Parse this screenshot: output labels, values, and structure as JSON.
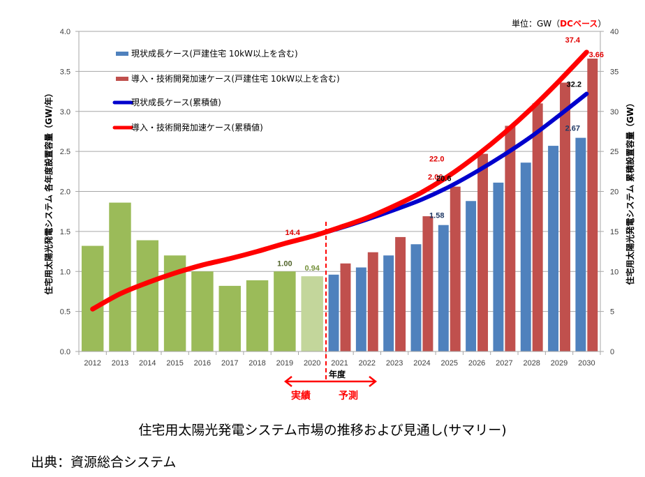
{
  "chart_data": {
    "type": "bar",
    "title": "住宅用太陽光発電システム市場の推移および見通し(サマリー)",
    "unit_note": {
      "prefix": "単位：GW（",
      "highlight": "DCベース",
      "suffix": "）"
    },
    "xlabel": "年度",
    "ylabel_left": "住宅用太陽光発電システム 各年度設置容量（GW/年）",
    "ylabel_right": "住宅用太陽光発電システム 累積設置容量（GW）",
    "ylim_left": [
      0,
      4.0
    ],
    "ylim_right": [
      0,
      40
    ],
    "yticks_left": [
      "0.0",
      "0.5",
      "1.0",
      "1.5",
      "2.0",
      "2.5",
      "3.0",
      "3.5",
      "4.0"
    ],
    "yticks_right": [
      "0",
      "5",
      "10",
      "15",
      "20",
      "25",
      "30",
      "35",
      "40"
    ],
    "grid": true,
    "legend_position": "top-left",
    "categories": [
      "2012",
      "2013",
      "2014",
      "2015",
      "2016",
      "2017",
      "2018",
      "2019",
      "2020",
      "2021",
      "2022",
      "2023",
      "2024",
      "2025",
      "2026",
      "2027",
      "2028",
      "2029",
      "2030"
    ],
    "actual_bars": {
      "name": "実績",
      "values": [
        1.32,
        1.86,
        1.39,
        1.2,
        1.0,
        0.82,
        0.89,
        1.0,
        0.94,
        null,
        null,
        null,
        null,
        null,
        null,
        null,
        null,
        null,
        null
      ],
      "color": "#9bbb59",
      "estimate_color": "#c3d69b"
    },
    "series": [
      {
        "name": "現状成長ケース(戸建住宅 10kW以上を含む)",
        "type": "bar",
        "axis": "left",
        "color": "#4f81bd",
        "values": [
          null,
          null,
          null,
          null,
          null,
          null,
          null,
          null,
          null,
          0.96,
          1.05,
          1.2,
          1.34,
          1.58,
          1.88,
          2.11,
          2.36,
          2.57,
          2.67
        ]
      },
      {
        "name": "導入・技術開発加速ケース(戸建住宅 10kW以上を含む)",
        "type": "bar",
        "axis": "left",
        "color": "#c0504d",
        "values": [
          null,
          null,
          null,
          null,
          null,
          null,
          null,
          null,
          null,
          1.1,
          1.24,
          1.43,
          1.69,
          2.06,
          2.47,
          2.82,
          3.1,
          3.36,
          3.66
        ]
      },
      {
        "name": "現状成長ケース(累積値)",
        "type": "line",
        "axis": "right",
        "color": "#0000cc",
        "values": [
          5.3,
          7.2,
          8.6,
          9.8,
          10.8,
          11.6,
          12.5,
          13.5,
          14.4,
          15.4,
          16.5,
          17.7,
          19.0,
          20.6,
          22.5,
          24.6,
          26.9,
          29.5,
          32.2
        ]
      },
      {
        "name": "導入・技術開発加速ケース(累積値)",
        "type": "line",
        "axis": "right",
        "color": "#ff0000",
        "values": [
          5.3,
          7.2,
          8.6,
          9.8,
          10.8,
          11.6,
          12.5,
          13.5,
          14.4,
          15.5,
          16.7,
          18.2,
          19.9,
          22.0,
          24.5,
          27.3,
          30.4,
          33.8,
          37.4
        ]
      }
    ],
    "data_labels": [
      {
        "text": "1.00",
        "category": "2019",
        "value": 1.0,
        "axis": "left",
        "color": "#4f6228"
      },
      {
        "text": "0.94",
        "category": "2020",
        "value": 0.94,
        "axis": "left",
        "color": "#76923c"
      },
      {
        "text": "14.4",
        "category": "2020",
        "value": 14.4,
        "axis": "right",
        "color": "#e00000"
      },
      {
        "text": "1.58",
        "category": "2025",
        "value": 1.58,
        "axis": "left",
        "color": "#1f3864"
      },
      {
        "text": "2.06",
        "category": "2025",
        "value": 2.06,
        "axis": "left",
        "color": "#e00000"
      },
      {
        "text": "20.6",
        "category": "2025",
        "value": 20.6,
        "axis": "right",
        "color": "#000000"
      },
      {
        "text": "22.0",
        "category": "2025",
        "value": 22.0,
        "axis": "right",
        "color": "#e00000"
      },
      {
        "text": "2.67",
        "category": "2030",
        "value": 2.67,
        "axis": "left",
        "color": "#1f3864"
      },
      {
        "text": "3.66",
        "category": "2030",
        "value": 3.66,
        "axis": "left",
        "color": "#e00000"
      },
      {
        "text": "32.2",
        "category": "2030",
        "value": 32.2,
        "axis": "right",
        "color": "#000000"
      },
      {
        "text": "37.4",
        "category": "2030",
        "value": 37.4,
        "axis": "right",
        "color": "#e00000"
      }
    ],
    "annotations": {
      "divider_after": "2020",
      "actual_label": "実績",
      "forecast_label": "予測"
    }
  },
  "caption": "住宅用太陽光発電システム市場の推移および見通し(サマリー)",
  "source": "出典：資源総合システム"
}
